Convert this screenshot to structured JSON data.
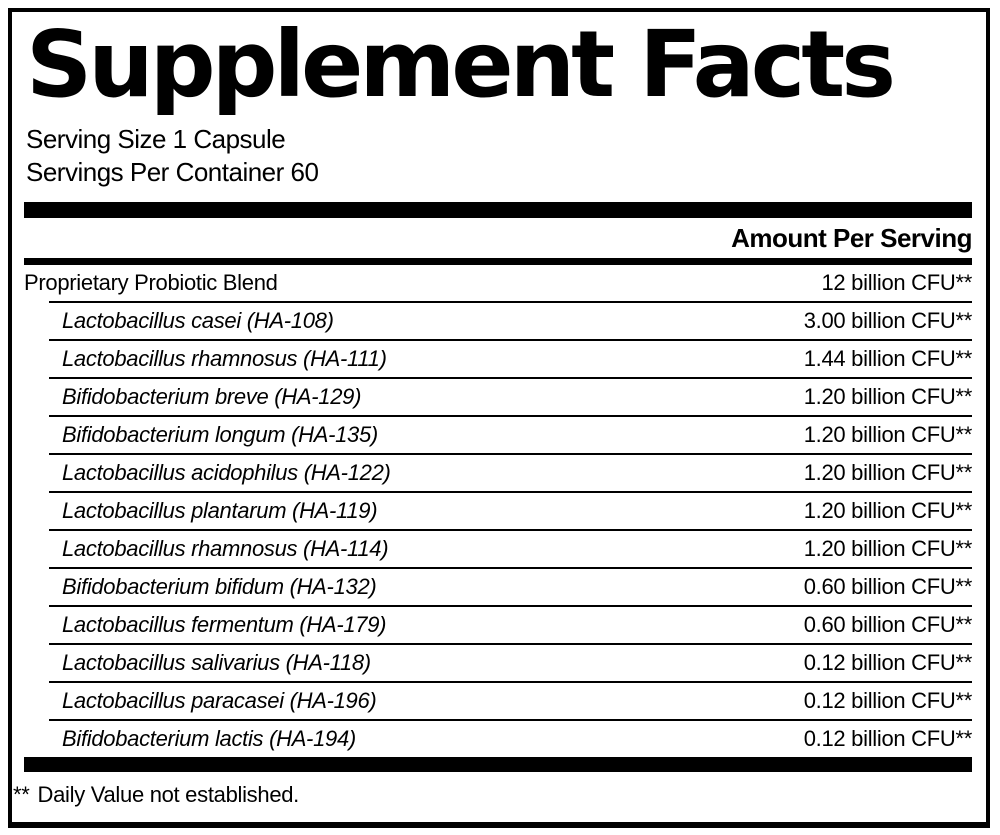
{
  "label": {
    "title": "Supplement Facts",
    "serving_size": "Serving Size 1 Capsule",
    "servings_per_container": "Servings Per Container 60",
    "amount_per_serving_header": "Amount Per Serving",
    "footnote": {
      "marker": "**",
      "text": "Daily Value not established."
    },
    "colors": {
      "ink": "#000000",
      "paper": "#ffffff"
    }
  },
  "rows": [
    {
      "name": "Proprietary Probiotic Blend",
      "amount": "12 billion CFU**"
    },
    {
      "name": "Lactobacillus casei (HA-108)",
      "amount": "3.00 billion CFU**"
    },
    {
      "name": "Lactobacillus rhamnosus (HA-111)",
      "amount": "1.44 billion CFU**"
    },
    {
      "name": "Bifidobacterium breve (HA-129)",
      "amount": "1.20 billion CFU**"
    },
    {
      "name": "Bifidobacterium longum (HA-135)",
      "amount": "1.20 billion CFU**"
    },
    {
      "name": "Lactobacillus acidophilus (HA-122)",
      "amount": "1.20 billion CFU**"
    },
    {
      "name": "Lactobacillus plantarum (HA-119)",
      "amount": "1.20 billion CFU**"
    },
    {
      "name": "Lactobacillus rhamnosus (HA-114)",
      "amount": "1.20 billion CFU**"
    },
    {
      "name": "Bifidobacterium bifidum (HA-132)",
      "amount": "0.60 billion CFU**"
    },
    {
      "name": "Lactobacillus fermentum (HA-179)",
      "amount": "0.60 billion CFU**"
    },
    {
      "name": "Lactobacillus salivarius (HA-118)",
      "amount": "0.12 billion CFU**"
    },
    {
      "name": "Lactobacillus paracasei (HA-196)",
      "amount": "0.12 billion CFU**"
    },
    {
      "name": "Bifidobacterium lactis (HA-194)",
      "amount": "0.12 billion CFU**"
    }
  ]
}
